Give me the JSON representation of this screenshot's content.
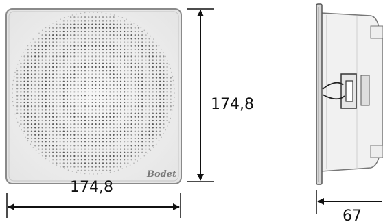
{
  "drawing": {
    "front_view": {
      "logo_text": "Bodet",
      "width_label": "174,8",
      "height_label": "174,8"
    },
    "side_view": {
      "depth_label": "67"
    }
  },
  "colors": {
    "line": "#111111",
    "panel_edge": "#8a8a8a",
    "grille_dot": "#3c3c3c"
  }
}
